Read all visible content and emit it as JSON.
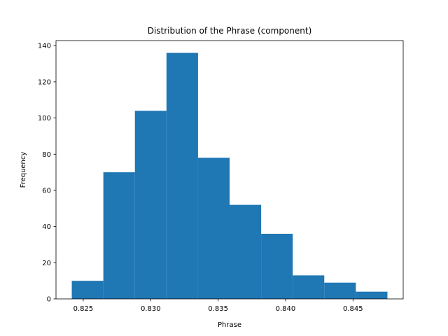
{
  "chart_data": {
    "type": "bar",
    "title": "Distribution of the Phrase (component)",
    "xlabel": "Phrase",
    "ylabel": "Frequency",
    "bin_edges": [
      0.82415,
      0.82649,
      0.82883,
      0.83117,
      0.83351,
      0.83585,
      0.83819,
      0.84053,
      0.84287,
      0.84521,
      0.84755
    ],
    "values": [
      10,
      70,
      104,
      136,
      78,
      52,
      36,
      13,
      9,
      4
    ],
    "xlim": [
      0.82298,
      0.84872
    ],
    "ylim": [
      0,
      142.8
    ],
    "xticks": [
      0.825,
      0.83,
      0.835,
      0.84,
      0.845
    ],
    "xtick_labels": [
      "0.825",
      "0.830",
      "0.835",
      "0.840",
      "0.845"
    ],
    "yticks": [
      0,
      20,
      40,
      60,
      80,
      100,
      120,
      140
    ],
    "ytick_labels": [
      "0",
      "20",
      "40",
      "60",
      "80",
      "100",
      "120",
      "140"
    ],
    "bar_color": "#1f77b4",
    "grid": false,
    "legend": "none"
  }
}
